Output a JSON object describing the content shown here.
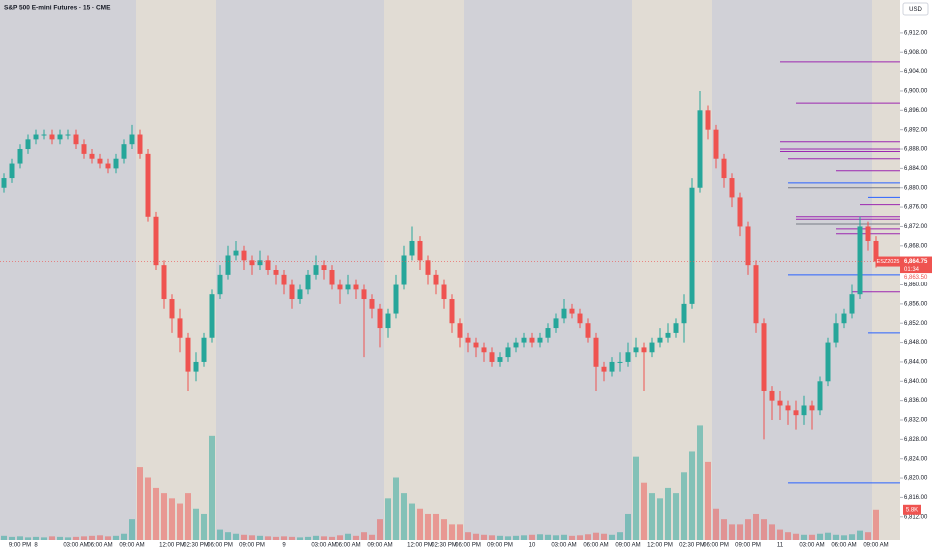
{
  "chart_data": {
    "type": "candlestick",
    "title": "S&P 500 E-mini Futures · 15 · CME",
    "currency": "USD",
    "symbol": "ESZ2025",
    "countdown": "01:34",
    "last": {
      "value": 6864.75,
      "label": "6,864.75"
    },
    "bid": {
      "value": 6863.5,
      "label": "6,863.50"
    },
    "volume_label": {
      "value": 5.8,
      "label": "5.8K"
    },
    "up_color": "#26a69a",
    "down_color": "#ef5350",
    "ylim": [
      6807.2,
      6918.8
    ],
    "volume_lim": [
      0,
      24
    ],
    "yticks": [
      {
        "value": 6812,
        "label": "6,812.00"
      },
      {
        "value": 6816,
        "label": "6,816.00"
      },
      {
        "value": 6820,
        "label": "6,820.00"
      },
      {
        "value": 6824,
        "label": "6,824.00"
      },
      {
        "value": 6828,
        "label": "6,828.00"
      },
      {
        "value": 6832,
        "label": "6,832.00"
      },
      {
        "value": 6836,
        "label": "6,836.00"
      },
      {
        "value": 6840,
        "label": "6,840.00"
      },
      {
        "value": 6844,
        "label": "6,844.00"
      },
      {
        "value": 6848,
        "label": "6,848.00"
      },
      {
        "value": 6852,
        "label": "6,852.00"
      },
      {
        "value": 6856,
        "label": "6,856.00"
      },
      {
        "value": 6860,
        "label": "6,860.00"
      },
      {
        "value": 6868,
        "label": "6,868.00"
      },
      {
        "value": 6872,
        "label": "6,872.00"
      },
      {
        "value": 6876,
        "label": "6,876.00"
      },
      {
        "value": 6880,
        "label": "6,880.00"
      },
      {
        "value": 6884,
        "label": "6,884.00"
      },
      {
        "value": 6888,
        "label": "6,888.00"
      },
      {
        "value": 6892,
        "label": "6,892.00"
      },
      {
        "value": 6896,
        "label": "6,896.00"
      },
      {
        "value": 6900,
        "label": "6,900.00"
      },
      {
        "value": 6904,
        "label": "6,904.00"
      },
      {
        "value": 6908,
        "label": "6,908.00"
      },
      {
        "value": 6912,
        "label": "6,912.00"
      }
    ],
    "sessions": [
      [
        17,
        26
      ],
      [
        48,
        57
      ],
      [
        79,
        88
      ],
      [
        109,
        109
      ]
    ],
    "categories": [
      null,
      null,
      "9:00 PM",
      null,
      "8",
      null,
      null,
      null,
      null,
      "03:00 AM",
      null,
      null,
      "06:00 AM",
      null,
      null,
      null,
      "09:00 AM",
      null,
      null,
      null,
      null,
      "12:00 PM",
      null,
      null,
      "02:30 PM",
      null,
      null,
      "06:00 PM",
      null,
      null,
      null,
      "09:00 PM",
      null,
      null,
      null,
      "9",
      null,
      null,
      null,
      null,
      "03:00 AM",
      null,
      null,
      "06:00 AM",
      null,
      null,
      null,
      "09:00 AM",
      null,
      null,
      null,
      null,
      "12:00 PM",
      null,
      null,
      "02:30 PM",
      null,
      null,
      "06:00 PM",
      null,
      null,
      null,
      "09:00 PM",
      null,
      null,
      null,
      "10",
      null,
      null,
      null,
      "03:00 AM",
      null,
      null,
      null,
      "06:00 AM",
      null,
      null,
      null,
      "09:00 AM",
      null,
      null,
      null,
      "12:00 PM",
      null,
      null,
      null,
      "02:30 PM",
      null,
      null,
      "06:00 PM",
      null,
      null,
      null,
      "09:00 PM",
      null,
      null,
      null,
      "11",
      null,
      null,
      null,
      "03:00 AM",
      null,
      null,
      null,
      "06:00 AM",
      null,
      null,
      null,
      "09:00 AM"
    ],
    "open": [
      6880,
      6882,
      6885,
      6888,
      6890,
      6891,
      6891,
      6890,
      6891,
      6891,
      6889,
      6887,
      6886,
      6885,
      6884,
      6886,
      6889,
      6891,
      6887,
      6874,
      6864,
      6857,
      6853,
      6849,
      6842,
      6844,
      6849,
      6858,
      6862,
      6866,
      6867,
      6865,
      6864,
      6865,
      6863,
      6862,
      6860,
      6857,
      6859,
      6862,
      6864,
      6863,
      6860,
      6859,
      6860,
      6859,
      6857,
      6855,
      6851,
      6854,
      6860,
      6866,
      6869,
      6865,
      6862,
      6860,
      6857,
      6852,
      6849,
      6848,
      6847,
      6846,
      6844,
      6845,
      6847,
      6848,
      6849,
      6848,
      6849,
      6851,
      6853,
      6855,
      6854,
      6852,
      6849,
      6843,
      6842,
      6844,
      6844,
      6846,
      6847,
      6846,
      6848,
      6849,
      6850,
      6852,
      6856,
      6880,
      6896,
      6892,
      6886,
      6882,
      6878,
      6872,
      6864,
      6852,
      6838,
      6836,
      6835,
      6834,
      6833,
      6835,
      6834,
      6840,
      6848,
      6852,
      6854,
      6858,
      6872,
      6869
    ],
    "high": [
      6883,
      6886,
      6889,
      6891,
      6892,
      6892,
      6892,
      6892,
      6892,
      6892,
      6890,
      6888,
      6887,
      6886,
      6887,
      6890,
      6893,
      6892,
      6888,
      6875,
      6865,
      6858,
      6855,
      6850,
      6846,
      6850,
      6859,
      6864,
      6868,
      6869,
      6868,
      6866,
      6867,
      6866,
      6864,
      6863,
      6861,
      6860,
      6863,
      6866,
      6865,
      6864,
      6861,
      6862,
      6861,
      6860,
      6858,
      6856,
      6855,
      6862,
      6868,
      6872,
      6870,
      6866,
      6863,
      6861,
      6858,
      6853,
      6850,
      6849,
      6848,
      6847,
      6846,
      6848,
      6849,
      6850,
      6850,
      6850,
      6852,
      6854,
      6857,
      6856,
      6855,
      6853,
      6850,
      6844,
      6845,
      6846,
      6848,
      6849,
      6848,
      6849,
      6851,
      6852,
      6853,
      6858,
      6882,
      6900,
      6897,
      6893,
      6887,
      6883,
      6879,
      6873,
      6865,
      6853,
      6839,
      6838,
      6836,
      6836,
      6837,
      6836,
      6841,
      6849,
      6854,
      6855,
      6860,
      6874,
      6873,
      6870
    ],
    "low": [
      6879,
      6881,
      6884,
      6887,
      6889,
      6890,
      6889,
      6889,
      6890,
      6888,
      6886,
      6885,
      6884,
      6883,
      6883,
      6885,
      6888,
      6886,
      6873,
      6863,
      6855,
      6850,
      6846,
      6838,
      6840,
      6843,
      6848,
      6857,
      6861,
      6865,
      6863,
      6862,
      6863,
      6862,
      6860,
      6858,
      6855,
      6856,
      6858,
      6861,
      6861,
      6859,
      6856,
      6858,
      6857,
      6845,
      6853,
      6847,
      6849,
      6853,
      6859,
      6865,
      6863,
      6860,
      6858,
      6855,
      6850,
      6847,
      6846,
      6845,
      6844,
      6843,
      6843,
      6844,
      6846,
      6847,
      6847,
      6847,
      6848,
      6850,
      6852,
      6853,
      6851,
      6848,
      6838,
      6840,
      6841,
      6842,
      6843,
      6845,
      6838,
      6845,
      6847,
      6848,
      6849,
      6848,
      6855,
      6879,
      6890,
      6884,
      6880,
      6876,
      6870,
      6862,
      6850,
      6828,
      6832,
      6832,
      6831,
      6830,
      6831,
      6830,
      6833,
      6839,
      6847,
      6851,
      6853,
      6857,
      6867,
      6863.5
    ],
    "close": [
      6882,
      6885,
      6888,
      6890,
      6891,
      6891,
      6890,
      6891,
      6891,
      6889,
      6887,
      6886,
      6885,
      6884,
      6886,
      6889,
      6891,
      6887,
      6874,
      6864,
      6857,
      6853,
      6849,
      6842,
      6844,
      6849,
      6858,
      6862,
      6866,
      6867,
      6865,
      6864,
      6865,
      6863,
      6862,
      6860,
      6857,
      6859,
      6862,
      6864,
      6863,
      6860,
      6859,
      6860,
      6859,
      6857,
      6855,
      6851,
      6854,
      6860,
      6866,
      6869,
      6865,
      6862,
      6860,
      6857,
      6852,
      6849,
      6848,
      6847,
      6846,
      6844,
      6845,
      6847,
      6848,
      6849,
      6848,
      6849,
      6851,
      6853,
      6855,
      6854,
      6852,
      6849,
      6843,
      6842,
      6844,
      6844,
      6846,
      6847,
      6846,
      6848,
      6849,
      6850,
      6852,
      6856,
      6880,
      6896,
      6892,
      6886,
      6882,
      6878,
      6872,
      6864,
      6852,
      6838,
      6836,
      6835,
      6834,
      6833,
      6835,
      6834,
      6840,
      6848,
      6852,
      6854,
      6858,
      6872,
      6869,
      6864.75
    ],
    "volume": [
      0.8,
      0.6,
      0.7,
      0.5,
      0.6,
      0.5,
      0.7,
      0.6,
      0.5,
      0.6,
      0.7,
      0.8,
      0.9,
      0.7,
      0.8,
      1.2,
      4,
      14,
      12,
      10,
      9,
      8,
      7,
      9,
      6,
      5,
      20,
      2,
      1.5,
      1.2,
      1,
      0.9,
      0.8,
      0.7,
      0.6,
      0.7,
      0.6,
      0.5,
      0.6,
      0.8,
      0.7,
      0.6,
      0.9,
      1.2,
      0.8,
      1.5,
      1,
      4,
      8,
      12,
      9,
      7,
      6,
      5,
      5,
      4,
      3,
      3,
      1.5,
      1.2,
      1,
      0.9,
      0.8,
      0.7,
      0.8,
      0.9,
      1,
      1.1,
      1,
      0.9,
      1,
      0.8,
      0.9,
      1.1,
      1.4,
      1.2,
      1,
      1.5,
      5,
      16,
      11,
      9,
      8,
      10,
      9,
      13,
      17,
      22,
      15,
      6,
      4,
      3,
      3,
      4,
      5,
      4,
      3,
      2,
      1.5,
      1.2,
      1,
      1,
      1.2,
      1.4,
      1,
      0.9,
      1.1,
      1.8,
      1.5,
      5.8
    ],
    "levels": [
      {
        "value": 6906,
        "from": 97,
        "color": "#9c27b0"
      },
      {
        "value": 6897.5,
        "from": 99,
        "color": "#9c27b0"
      },
      {
        "value": 6889.5,
        "from": 97,
        "color": "#9c27b0"
      },
      {
        "value": 6888,
        "from": 97,
        "color": "#9c27b0"
      },
      {
        "value": 6887.5,
        "from": 97,
        "color": "#9c27b0"
      },
      {
        "value": 6886,
        "from": 98,
        "color": "#9c27b0"
      },
      {
        "value": 6883.5,
        "from": 104,
        "color": "#9c27b0"
      },
      {
        "value": 6881,
        "from": 98,
        "color": "#2962ff"
      },
      {
        "value": 6880,
        "from": 98,
        "color": "#787b86"
      },
      {
        "value": 6878,
        "from": 108,
        "color": "#2962ff"
      },
      {
        "value": 6876.5,
        "from": 107,
        "color": "#9c27b0"
      },
      {
        "value": 6874,
        "from": 99,
        "color": "#9c27b0"
      },
      {
        "value": 6873.5,
        "from": 99,
        "color": "#9c27b0"
      },
      {
        "value": 6872.5,
        "from": 99,
        "color": "#787b86"
      },
      {
        "value": 6871.5,
        "from": 104,
        "color": "#9c27b0"
      },
      {
        "value": 6870.5,
        "from": 104,
        "color": "#9c27b0"
      },
      {
        "value": 6862,
        "from": 98,
        "color": "#2962ff"
      },
      {
        "value": 6858.5,
        "from": 106,
        "color": "#9c27b0"
      },
      {
        "value": 6850,
        "from": 108,
        "color": "#2962ff"
      },
      {
        "value": 6819,
        "from": 98,
        "color": "#2962ff"
      }
    ]
  }
}
